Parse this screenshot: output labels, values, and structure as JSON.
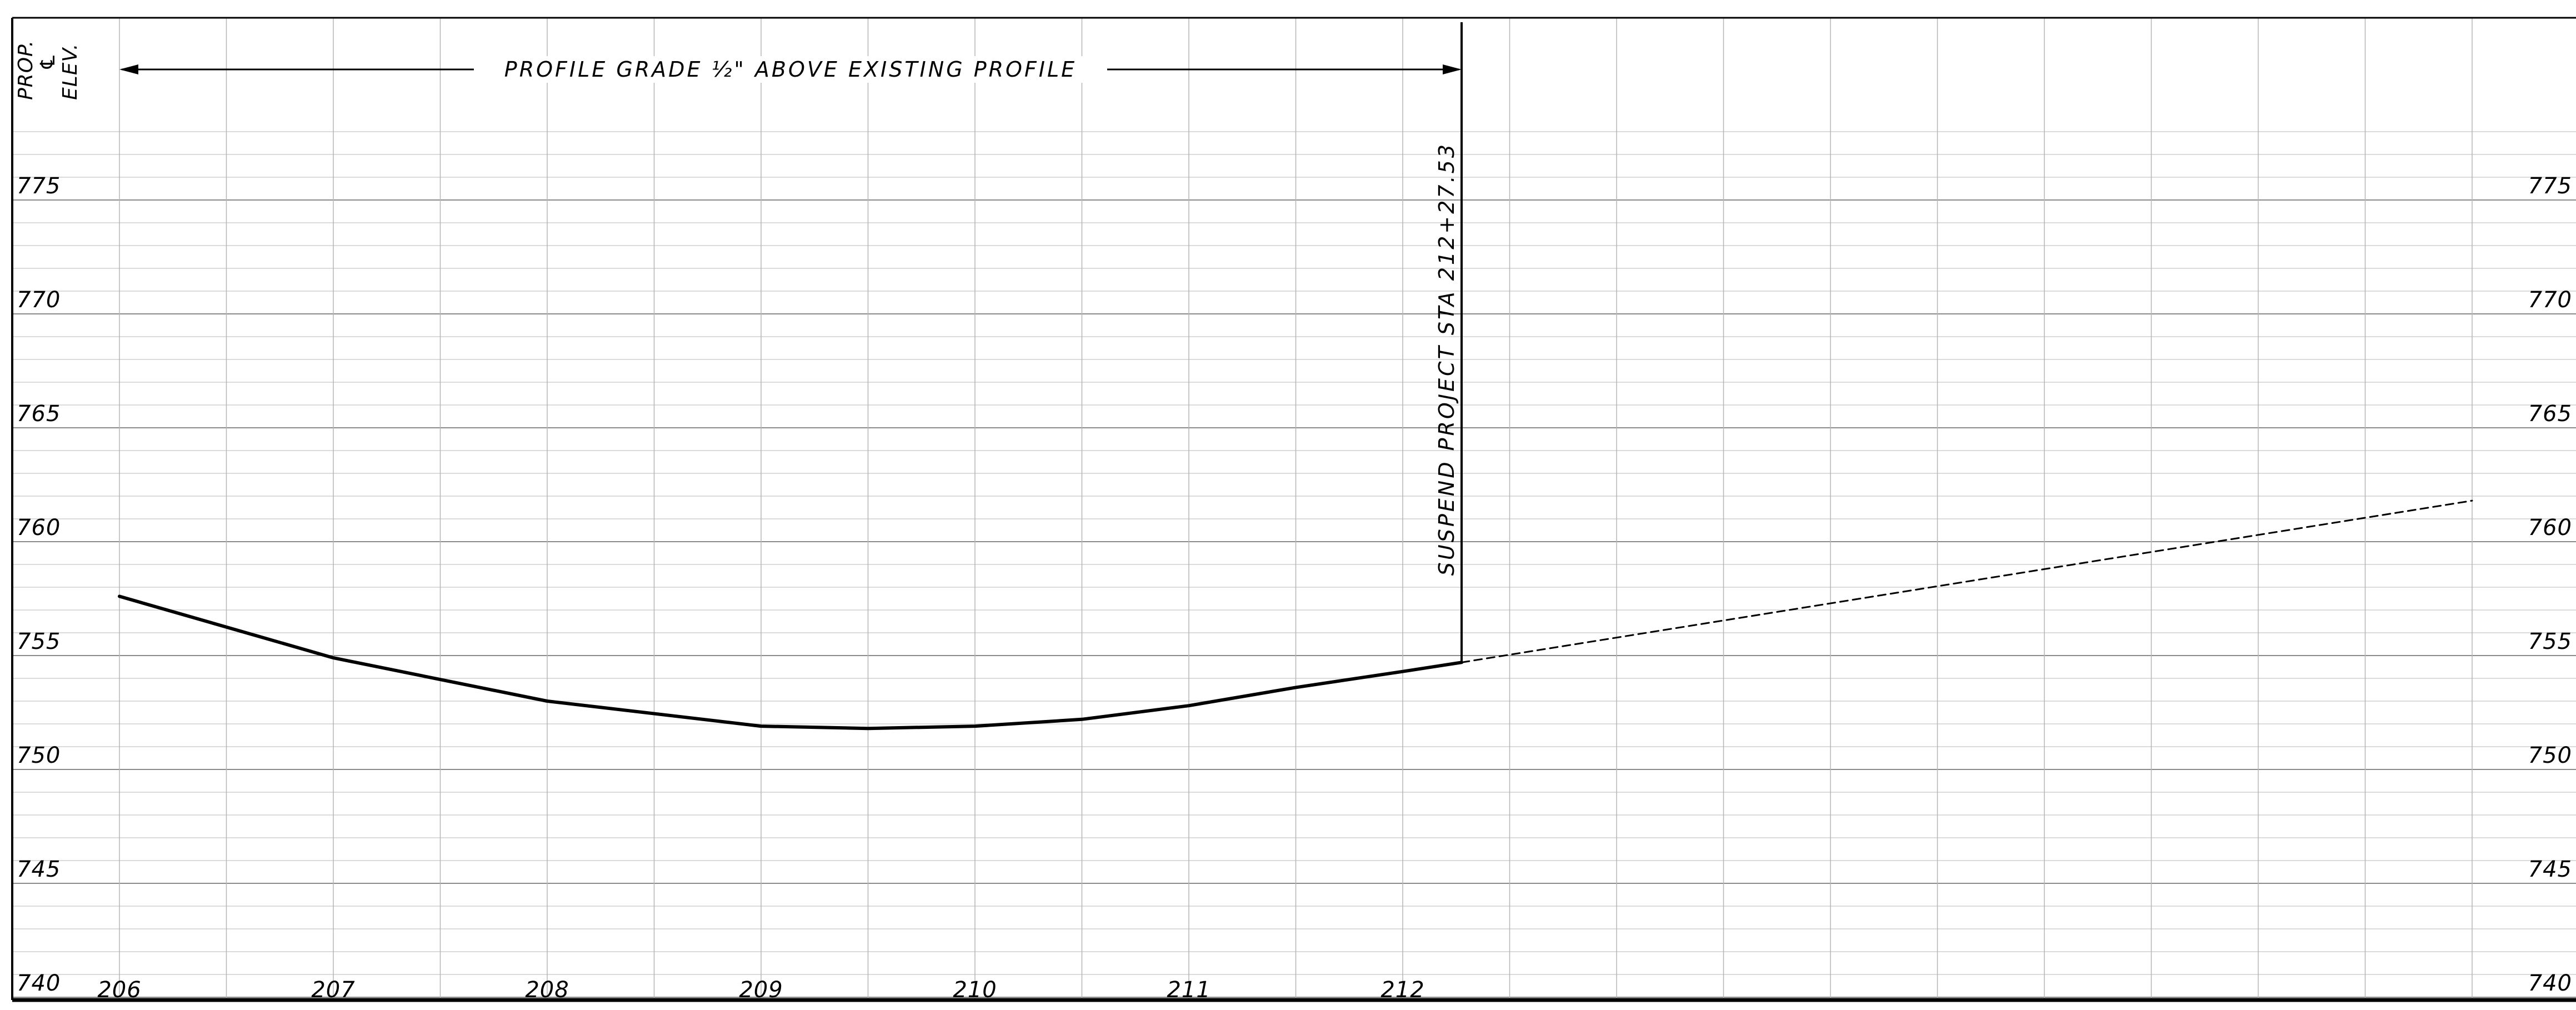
{
  "drawing": {
    "corner_label_lines": [
      "PROP.",
      "℄",
      "ELEV."
    ],
    "grade_note": "PROFILE GRADE ½\" ABOVE EXISTING PROFILE",
    "suspend_note": "SUSPEND PROJECT STA 212+27.53"
  },
  "chart_data": {
    "type": "line",
    "xlabel": "",
    "ylabel": "PROP. ℄ ELEV.",
    "x_ticks": [
      "206",
      "207",
      "208",
      "209",
      "210",
      "211",
      "212"
    ],
    "y_ticks": [
      "775",
      "770",
      "765",
      "760",
      "755",
      "750",
      "745",
      "740"
    ],
    "xlim": [
      206,
      217.5
    ],
    "ylim": [
      735,
      778
    ],
    "grid": true,
    "series": [
      {
        "style": "solid",
        "x": [
          206.0,
          207.0,
          208.0,
          209.0,
          209.5,
          210.0,
          210.5,
          211.0,
          211.5,
          212.0,
          212.2753
        ],
        "y": [
          757.6,
          754.9,
          753.0,
          751.9,
          751.8,
          751.9,
          752.2,
          752.8,
          753.6,
          754.3,
          754.7
        ]
      },
      {
        "style": "dashed",
        "x": [
          212.2753,
          217.0
        ],
        "y": [
          754.7,
          761.8
        ]
      }
    ],
    "markers": [
      {
        "type": "vertical-line",
        "x": 212.2753,
        "label": "SUSPEND PROJECT STA 212+27.53"
      },
      {
        "type": "dimension-arrow",
        "x_from": 206.0,
        "x_to": 212.2753,
        "label": "PROFILE GRADE ½\" ABOVE EXISTING PROFILE"
      }
    ]
  }
}
